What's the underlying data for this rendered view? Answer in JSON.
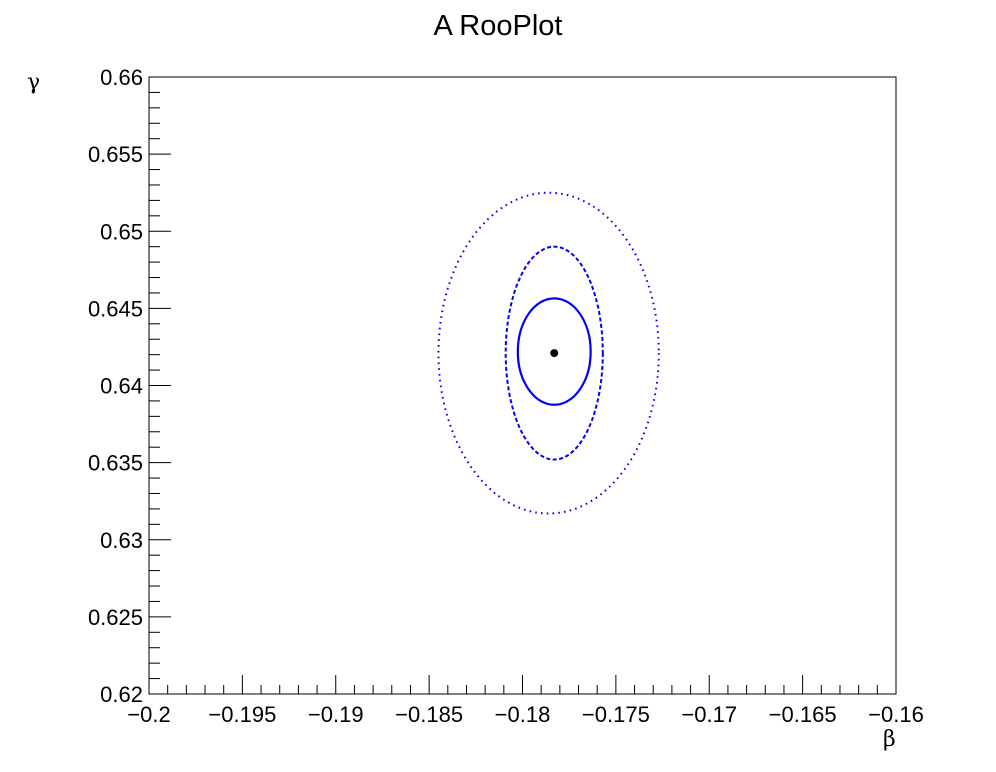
{
  "chart_data": {
    "type": "contour",
    "title": "A RooPlot",
    "xlabel": "β",
    "ylabel": "γ",
    "xlim": [
      -0.2,
      -0.16
    ],
    "ylim": [
      0.62,
      0.66
    ],
    "x_ticks": [
      -0.2,
      -0.195,
      -0.19,
      -0.185,
      -0.18,
      -0.175,
      -0.17,
      -0.165,
      -0.16
    ],
    "x_tick_labels": [
      "−0.2",
      "−0.195",
      "−0.19",
      "−0.185",
      "−0.18",
      "−0.175",
      "−0.17",
      "−0.165",
      "−0.16"
    ],
    "y_ticks": [
      0.62,
      0.625,
      0.63,
      0.635,
      0.64,
      0.645,
      0.65,
      0.655,
      0.66
    ],
    "y_tick_labels": [
      "0.62",
      "0.625",
      "0.63",
      "0.635",
      "0.64",
      "0.645",
      "0.65",
      "0.655",
      "0.66"
    ],
    "best_fit_point": {
      "x": -0.1783,
      "y": 0.6421
    },
    "contours": [
      {
        "level": 1,
        "center": [
          -0.1783,
          0.6422
        ],
        "half_width": 0.00195,
        "half_height": 0.00345,
        "style": "solid",
        "color": "#0000ff"
      },
      {
        "level": 2,
        "center": [
          -0.1783,
          0.6421
        ],
        "half_width": 0.0026,
        "half_height": 0.0069,
        "style": "dashed",
        "color": "#0000ff"
      },
      {
        "level": 3,
        "center": [
          -0.1786,
          0.6421
        ],
        "half_width": 0.0059,
        "half_height": 0.0104,
        "style": "dotted",
        "color": "#0000ff"
      }
    ],
    "grid": false,
    "frame_color": "#000000"
  }
}
